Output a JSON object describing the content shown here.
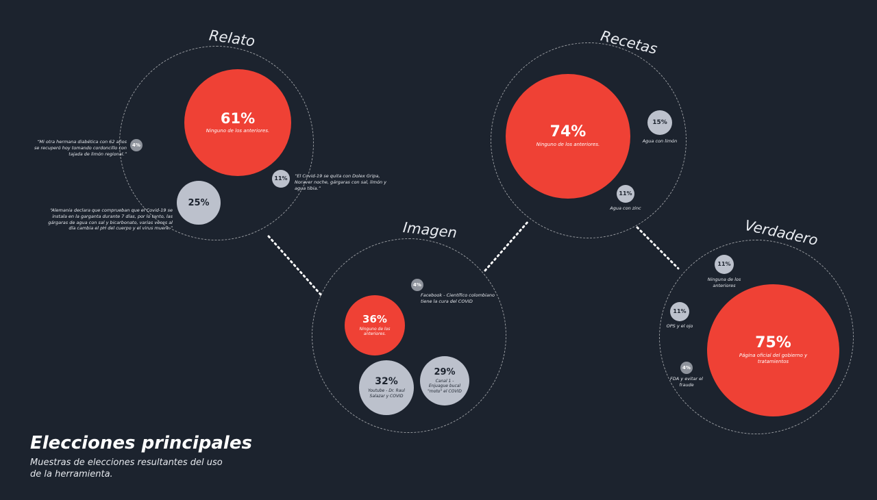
{
  "colors": {
    "background": "#1c232e",
    "primary_choice": "#ef4135",
    "secondary_choice": "#bcc1cc",
    "minor_choice": "#8e939c"
  },
  "footer": {
    "title": "Elecciones principales",
    "subtitle": "Muestras de elecciones resultantes del uso de la herramienta."
  },
  "clusters": [
    {
      "title": "Relato",
      "items": [
        {
          "pct": "61%",
          "label": "Ninguno de los anteriores."
        },
        {
          "pct": "25%",
          "label": "“Alemania declara que comprueban que el Covid-19 se instala en la garganta durante 7 días, por lo tanto, las gárgaras de agua con sal y bicarbonato, varias veces al día cambia el pH del cuerpo y el virus muere.”"
        },
        {
          "pct": "11%",
          "label": "“El Covid-19 se quita con Dolex Gripa, Noraver noche, gárgaras con sal, limón y agua tibia.”"
        },
        {
          "pct": "4%",
          "label": "“Mi otra hermana diabética con 62 años se recuperó hoy tomando cordoncillo con tajada de limón regional.”"
        }
      ]
    },
    {
      "title": "Imagen",
      "items": [
        {
          "pct": "36%",
          "label": "Ninguno de los anteriores."
        },
        {
          "pct": "32%",
          "label": "Youtube - Dr. Raul Salazar y COVID"
        },
        {
          "pct": "29%",
          "label": "Canal 1 - Enjuague bucal \"moto\" el COVID"
        },
        {
          "pct": "4%",
          "label": "Facebook - Científico colombiano tiene la cura del COVID"
        }
      ]
    },
    {
      "title": "Recetas",
      "items": [
        {
          "pct": "74%",
          "label": "Ninguno de los anteriores."
        },
        {
          "pct": "15%",
          "label": "Agua con limón"
        },
        {
          "pct": "11%",
          "label": "Agua con zinc"
        }
      ]
    },
    {
      "title": "Verdadero",
      "items": [
        {
          "pct": "75%",
          "label": "Página oficial del gobierno y tratamientos"
        },
        {
          "pct": "11%",
          "label": "Ninguna de los anteriores"
        },
        {
          "pct": "11%",
          "label": "OPS y el ojo"
        },
        {
          "pct": "4%",
          "label": "FDA y evitar el fraude"
        }
      ]
    }
  ]
}
